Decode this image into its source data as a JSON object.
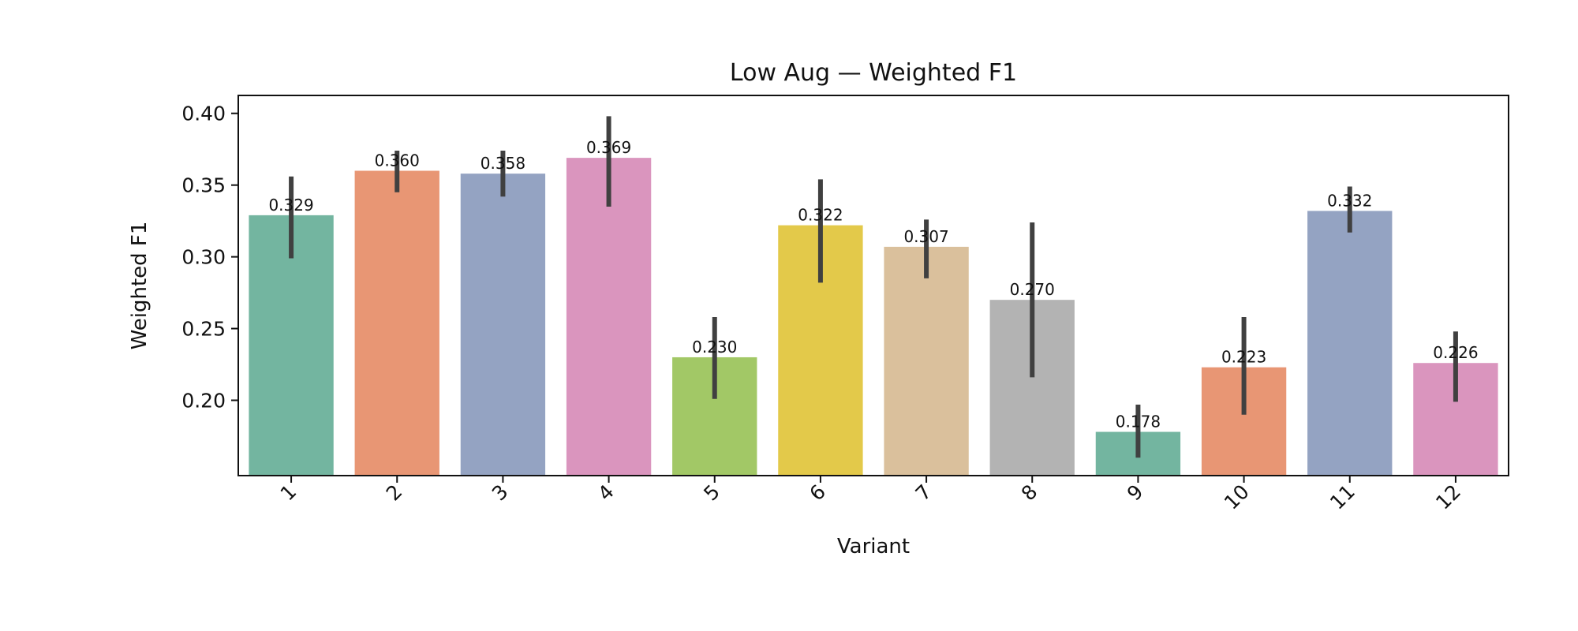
{
  "chart_data": {
    "type": "bar",
    "title": "Low Aug — Weighted F1",
    "xlabel": "Variant",
    "ylabel": "Weighted F1",
    "categories": [
      "1",
      "2",
      "3",
      "4",
      "5",
      "6",
      "7",
      "8",
      "9",
      "10",
      "11",
      "12"
    ],
    "values": [
      0.329,
      0.36,
      0.358,
      0.369,
      0.23,
      0.322,
      0.307,
      0.27,
      0.178,
      0.223,
      0.332,
      0.226
    ],
    "value_labels": [
      "0.329",
      "0.360",
      "0.358",
      "0.369",
      "0.230",
      "0.322",
      "0.307",
      "0.270",
      "0.178",
      "0.223",
      "0.332",
      "0.226"
    ],
    "error_low": [
      0.299,
      0.345,
      0.342,
      0.335,
      0.201,
      0.282,
      0.285,
      0.216,
      0.16,
      0.19,
      0.317,
      0.199
    ],
    "error_high": [
      0.356,
      0.374,
      0.374,
      0.398,
      0.258,
      0.354,
      0.326,
      0.324,
      0.197,
      0.258,
      0.349,
      0.248
    ],
    "ylim": [
      0.1475,
      0.4125
    ],
    "yticks": [
      "0.20",
      "0.25",
      "0.30",
      "0.35",
      "0.40"
    ],
    "ytick_values": [
      0.2,
      0.25,
      0.3,
      0.35,
      0.4
    ],
    "bar_colors": [
      "#73b5a0",
      "#e89674",
      "#94a3c2",
      "#da95be",
      "#a2c866",
      "#e3c94a",
      "#dac09c",
      "#b3b3b3",
      "#73b5a0",
      "#e89674",
      "#94a3c2",
      "#da95be"
    ],
    "error_color": "#404040",
    "grid": false,
    "legend": "none"
  }
}
